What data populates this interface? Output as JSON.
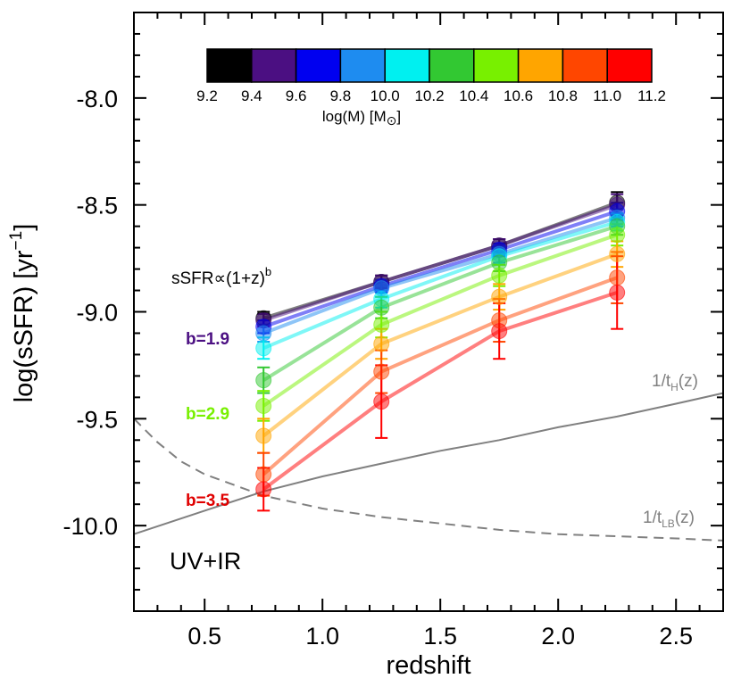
{
  "chart_data": {
    "type": "line",
    "xlabel": "redshift",
    "ylabel": "log(sSFR) [yr",
    "ylabel_sup": "−1",
    "ylabel_suffix": "]",
    "xlim": [
      0.2,
      2.7
    ],
    "ylim": [
      -10.4,
      -7.6
    ],
    "x_ticks": [
      0.5,
      1.0,
      1.5,
      2.0,
      2.5
    ],
    "x_tick_labels": [
      "0.5",
      "1.0",
      "1.5",
      "2.0",
      "2.5"
    ],
    "y_ticks": [
      -8.0,
      -8.5,
      -9.0,
      -9.5,
      -10.0
    ],
    "y_tick_labels": [
      "-8.0",
      "-8.5",
      "-9.0",
      "-9.5",
      "-10.0"
    ],
    "grid": false,
    "colorbar": {
      "label": "log(M) [M",
      "label_suffix": "]",
      "tick_labels": [
        "9.2",
        "9.4",
        "9.6",
        "9.8",
        "10.0",
        "10.2",
        "10.4",
        "10.6",
        "10.8",
        "11.0",
        "11.2"
      ],
      "colors": [
        "#000000",
        "#4b0f82",
        "#0000f0",
        "#1e8cf0",
        "#00f0f0",
        "#32c832",
        "#78f000",
        "#ffa500",
        "#ff4600",
        "#ff0000"
      ]
    },
    "x": [
      0.75,
      1.25,
      1.75,
      2.25
    ],
    "series": [
      {
        "mass": "9.2-9.4",
        "color": "#000000",
        "values": [
          -9.03,
          -8.86,
          -8.69,
          -8.49
        ],
        "err": [
          0.03,
          0.03,
          0.03,
          0.05
        ]
      },
      {
        "mass": "9.4-9.6",
        "color": "#4b0f82",
        "values": [
          -9.04,
          -8.86,
          -8.69,
          -8.5
        ],
        "err": [
          0.03,
          0.03,
          0.03,
          0.05
        ]
      },
      {
        "mass": "9.6-9.8",
        "color": "#0000f0",
        "values": [
          -9.07,
          -8.88,
          -8.71,
          -8.53
        ],
        "err": [
          0.03,
          0.03,
          0.03,
          0.04
        ]
      },
      {
        "mass": "9.8-10.0",
        "color": "#1e8cf0",
        "values": [
          -9.1,
          -8.89,
          -8.73,
          -8.56
        ],
        "err": [
          0.04,
          0.04,
          0.04,
          0.04
        ]
      },
      {
        "mass": "10.0-10.2",
        "color": "#00f0f0",
        "values": [
          -9.17,
          -8.94,
          -8.74,
          -8.58
        ],
        "err": [
          0.05,
          0.04,
          0.04,
          0.04
        ]
      },
      {
        "mass": "10.2-10.4",
        "color": "#32c832",
        "values": [
          -9.32,
          -8.98,
          -8.77,
          -8.6
        ],
        "err": [
          0.06,
          0.05,
          0.04,
          0.04
        ]
      },
      {
        "mass": "10.4-10.6",
        "color": "#78f000",
        "values": [
          -9.44,
          -9.06,
          -8.83,
          -8.64
        ],
        "err": [
          0.07,
          0.06,
          0.05,
          0.05
        ]
      },
      {
        "mass": "10.6-10.8",
        "color": "#ffa500",
        "values": [
          -9.58,
          -9.15,
          -8.93,
          -8.73
        ],
        "err": [
          0.08,
          0.07,
          0.06,
          0.06
        ]
      },
      {
        "mass": "10.8-11.0",
        "color": "#ff4600",
        "values": [
          -9.76,
          -9.28,
          -9.04,
          -8.84
        ],
        "err": [
          0.1,
          0.1,
          0.1,
          0.12
        ]
      },
      {
        "mass": "11.0-11.2",
        "color": "#ff0000",
        "values": [
          -9.83,
          -9.42,
          -9.09,
          -8.91
        ],
        "err": [
          0.1,
          0.17,
          0.13,
          0.17
        ]
      }
    ],
    "reference_curves": [
      {
        "label": "1/t",
        "sub": "H",
        "suffix": "(z)",
        "style": "solid",
        "color": "#808080",
        "x": [
          0.2,
          0.5,
          0.75,
          1.0,
          1.25,
          1.5,
          1.75,
          2.0,
          2.25,
          2.5,
          2.7
        ],
        "values": [
          -10.04,
          -9.93,
          -9.84,
          -9.77,
          -9.71,
          -9.65,
          -9.6,
          -9.54,
          -9.49,
          -9.43,
          -9.38
        ]
      },
      {
        "label": "1/t",
        "sub": "LB",
        "suffix": "(z)",
        "style": "dashed",
        "color": "#808080",
        "x": [
          0.2,
          0.3,
          0.4,
          0.5,
          0.6,
          0.75,
          1.0,
          1.25,
          1.5,
          1.75,
          2.0,
          2.25,
          2.5,
          2.7
        ],
        "values": [
          -9.5,
          -9.61,
          -9.7,
          -9.76,
          -9.8,
          -9.86,
          -9.92,
          -9.96,
          -9.99,
          -10.02,
          -10.04,
          -10.05,
          -10.06,
          -10.07
        ]
      }
    ],
    "annotations": {
      "formula": "sSFR∝(1+z)",
      "formula_sup": "b",
      "b_values": [
        {
          "text": "b=1.9",
          "color": "#4b0f82"
        },
        {
          "text": "b=2.9",
          "color": "#78f000"
        },
        {
          "text": "b=3.5",
          "color": "#e00000"
        }
      ],
      "corner_label": "UV+IR"
    }
  }
}
